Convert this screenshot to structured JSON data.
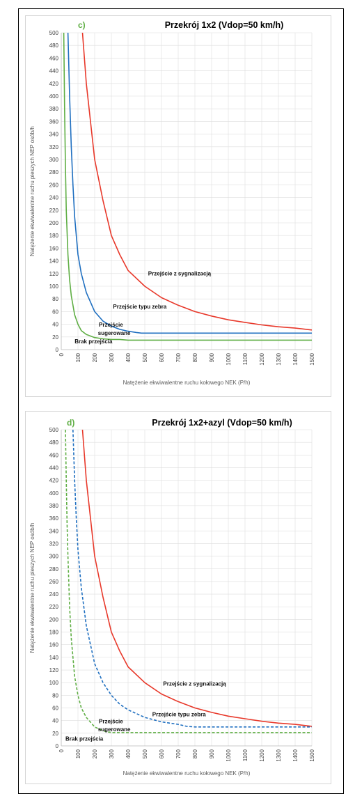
{
  "chart_data": [
    {
      "type": "line",
      "panel_letter": "c)",
      "title": "Przekrój 1x2 (Vdop=50 km/h)",
      "xlabel": "Natężenie ekwiwalentne ruchu kołowego NEK (P/h)",
      "ylabel": "Natężenie ekwiwalentne ruchu pieszych NEP osób/h",
      "xlim": [
        0,
        1500
      ],
      "ylim": [
        0,
        500
      ],
      "xticks": [
        0,
        100,
        200,
        300,
        400,
        500,
        600,
        700,
        800,
        900,
        1000,
        1100,
        1200,
        1300,
        1400,
        1500
      ],
      "yticks": [
        0,
        20,
        40,
        60,
        80,
        100,
        120,
        140,
        160,
        180,
        200,
        220,
        240,
        260,
        280,
        300,
        320,
        340,
        360,
        380,
        400,
        420,
        440,
        460,
        480,
        500
      ],
      "grid": true,
      "series": [
        {
          "style": "solid",
          "color": "#e8382a",
          "x": [
            127,
            150,
            175,
            200,
            250,
            300,
            350,
            400,
            500,
            600,
            700,
            800,
            900,
            1000,
            1100,
            1200,
            1300,
            1400,
            1500
          ],
          "y": [
            500,
            420,
            360,
            300,
            235,
            180,
            150,
            125,
            100,
            82,
            70,
            60,
            53,
            47,
            43,
            39,
            36,
            34,
            31
          ]
        },
        {
          "style": "solid",
          "color": "#1f6fc0",
          "x": [
            40,
            50,
            60,
            70,
            80,
            100,
            120,
            150,
            200,
            250,
            300,
            350,
            400,
            450,
            480,
            500,
            800,
            1500
          ],
          "y": [
            500,
            400,
            320,
            260,
            210,
            150,
            120,
            90,
            60,
            45,
            37,
            32,
            29,
            27,
            26,
            26,
            26,
            26
          ]
        },
        {
          "style": "solid",
          "color": "#5fae44",
          "x": [
            15,
            20,
            25,
            30,
            40,
            50,
            60,
            80,
            100,
            120,
            150,
            200,
            250,
            300,
            350,
            400,
            500,
            1500
          ],
          "y": [
            500,
            380,
            290,
            220,
            150,
            110,
            85,
            55,
            40,
            30,
            24,
            19,
            17,
            16,
            16,
            15,
            15,
            15
          ]
        }
      ],
      "annotations": [
        {
          "text": "Przejście z sygnalizacją",
          "x": 520,
          "y": 117
        },
        {
          "text": "Przejście typu zebra",
          "x": 310,
          "y": 65
        },
        {
          "text": "Przejście",
          "x": 225,
          "y": 36
        },
        {
          "text": "sugerowane",
          "x": 220,
          "y": 23
        },
        {
          "text": "Brak przejścia",
          "x": 80,
          "y": 10
        }
      ]
    },
    {
      "type": "line",
      "panel_letter": "d)",
      "title": "Przekrój 1x2+azyl (Vdop=50 km/h)",
      "xlabel": "Natężenie ekwiwalentne ruchu kołowego NEK (P/h)",
      "ylabel": "Natężenie ekwiwalentne ruchu pieszych NEP osób/h",
      "xlim": [
        0,
        1500
      ],
      "ylim": [
        0,
        500
      ],
      "xticks": [
        0,
        100,
        200,
        300,
        400,
        500,
        600,
        700,
        800,
        900,
        1000,
        1100,
        1200,
        1300,
        1400,
        1500
      ],
      "yticks": [
        0,
        20,
        40,
        60,
        80,
        100,
        120,
        140,
        160,
        180,
        200,
        220,
        240,
        260,
        280,
        300,
        320,
        340,
        360,
        380,
        400,
        420,
        440,
        460,
        480,
        500
      ],
      "grid": true,
      "series": [
        {
          "style": "solid",
          "color": "#e8382a",
          "x": [
            127,
            150,
            175,
            200,
            250,
            300,
            350,
            400,
            500,
            600,
            700,
            800,
            900,
            1000,
            1100,
            1200,
            1300,
            1400,
            1500
          ],
          "y": [
            500,
            420,
            360,
            300,
            235,
            180,
            150,
            125,
            100,
            82,
            70,
            60,
            53,
            47,
            43,
            39,
            36,
            34,
            31
          ]
        },
        {
          "style": "dashed",
          "color": "#1f6fc0",
          "x": [
            70,
            80,
            90,
            100,
            120,
            150,
            200,
            250,
            300,
            350,
            400,
            500,
            600,
            700,
            750,
            800,
            1500
          ],
          "y": [
            500,
            420,
            360,
            310,
            250,
            190,
            130,
            100,
            80,
            66,
            57,
            45,
            38,
            34,
            31,
            30,
            30
          ]
        },
        {
          "style": "dashed",
          "color": "#5fae44",
          "x": [
            25,
            30,
            35,
            40,
            50,
            60,
            80,
            100,
            120,
            150,
            200,
            250,
            280,
            300,
            1500
          ],
          "y": [
            500,
            420,
            350,
            300,
            220,
            170,
            110,
            80,
            60,
            45,
            30,
            24,
            22,
            21,
            21
          ]
        }
      ],
      "annotations": [
        {
          "text": "Przejście z sygnalizacją",
          "x": 610,
          "y": 95
        },
        {
          "text": "Przejście typu zebra",
          "x": 545,
          "y": 47
        },
        {
          "text": "Przejście",
          "x": 225,
          "y": 36
        },
        {
          "text": "sugerowane",
          "x": 220,
          "y": 23
        },
        {
          "text": "Brak przejścia",
          "x": 25,
          "y": 8
        }
      ]
    }
  ]
}
